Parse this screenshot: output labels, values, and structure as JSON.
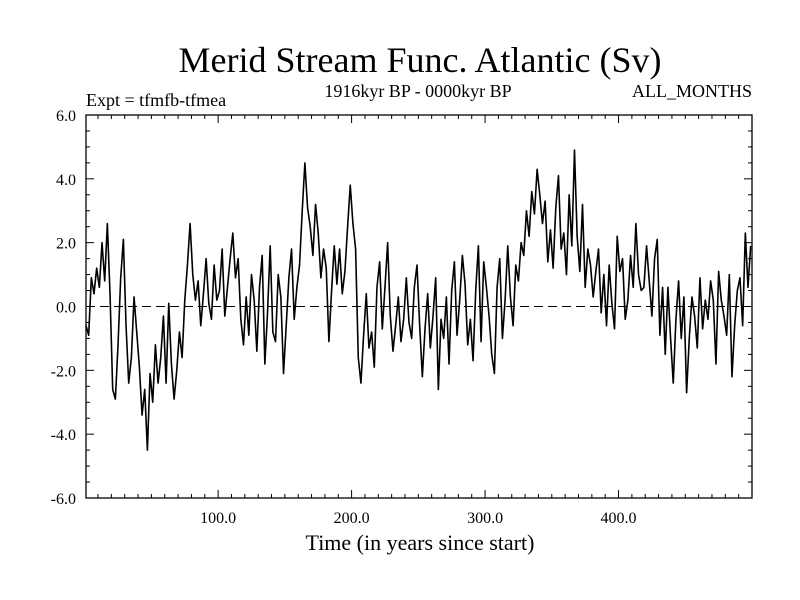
{
  "chart_data": {
    "type": "line",
    "title": "Merid Stream Func. Atlantic (Sv)",
    "subtitle": "1916kyr BP - 0000kyr BP",
    "experiment_label": "Expt = tfmfb-tfmea",
    "season_label": "ALL_MONTHS",
    "xlabel": "Time (in years since start)",
    "ylabel": "",
    "xlim": [
      1,
      500
    ],
    "ylim": [
      -6.0,
      6.0
    ],
    "x_ticks": [
      100,
      200,
      300,
      400
    ],
    "x_tick_labels": [
      "100.0",
      "200.0",
      "300.0",
      "400.0"
    ],
    "y_ticks": [
      -6,
      -4,
      -2,
      0,
      2,
      4,
      6
    ],
    "y_tick_labels": [
      "-6.0",
      "-4.0",
      "-2.0",
      "0.0",
      "2.0",
      "4.0",
      "6.0"
    ],
    "reference_line": 0.0,
    "series": [
      {
        "name": "Merid Stream Func. Atlantic",
        "x_start": 1,
        "x_step": 2,
        "values": [
          -0.6,
          -0.9,
          0.9,
          0.4,
          1.2,
          0.6,
          2.0,
          0.8,
          2.6,
          0.4,
          -2.6,
          -2.9,
          -1.2,
          0.9,
          2.1,
          -0.6,
          -2.4,
          -1.6,
          0.3,
          -0.8,
          -1.9,
          -3.4,
          -2.6,
          -4.5,
          -2.1,
          -3.0,
          -1.2,
          -2.4,
          -1.6,
          -0.3,
          -2.4,
          0.1,
          -1.8,
          -2.9,
          -2.0,
          -0.8,
          -1.6,
          0.2,
          1.3,
          2.6,
          1.0,
          0.2,
          0.8,
          -0.6,
          0.4,
          1.5,
          0.1,
          -0.4,
          1.3,
          0.2,
          0.5,
          1.8,
          -0.3,
          0.6,
          1.5,
          2.3,
          0.9,
          1.5,
          -0.4,
          -1.2,
          0.3,
          -0.9,
          1.0,
          0.2,
          -1.4,
          0.6,
          1.6,
          -1.8,
          -0.2,
          1.9,
          -0.8,
          -1.1,
          1.0,
          0.3,
          -2.1,
          -0.6,
          0.9,
          1.8,
          -0.4,
          0.6,
          1.3,
          3.0,
          4.5,
          3.1,
          2.5,
          1.6,
          3.2,
          2.3,
          0.9,
          1.8,
          1.2,
          -1.1,
          0.5,
          1.9,
          0.7,
          1.8,
          0.4,
          1.1,
          2.5,
          3.8,
          2.6,
          1.8,
          -1.6,
          -2.4,
          -0.9,
          0.4,
          -1.3,
          -0.8,
          -1.9,
          0.6,
          1.4,
          -0.7,
          0.6,
          2.0,
          -0.3,
          -1.4,
          -0.6,
          0.3,
          -1.1,
          -0.4,
          0.9,
          -0.5,
          -1.0,
          0.6,
          1.3,
          -0.6,
          -2.2,
          -0.7,
          0.4,
          -1.3,
          -0.3,
          0.9,
          -2.6,
          -0.4,
          -1.0,
          0.3,
          -1.8,
          0.5,
          1.4,
          -0.9,
          0.2,
          1.6,
          0.7,
          -1.2,
          -0.4,
          -1.7,
          0.5,
          1.9,
          -1.1,
          1.4,
          0.6,
          -0.3,
          -1.5,
          -2.1,
          0.6,
          1.5,
          -1.0,
          0.2,
          1.9,
          0.3,
          -0.6,
          1.3,
          0.8,
          2.0,
          1.6,
          3.0,
          2.2,
          3.6,
          2.9,
          4.3,
          3.5,
          2.6,
          3.3,
          1.4,
          2.4,
          1.2,
          3.1,
          4.1,
          1.8,
          2.3,
          1.0,
          3.5,
          1.9,
          4.9,
          2.2,
          1.1,
          3.2,
          0.6,
          1.8,
          1.3,
          0.3,
          1.1,
          1.8,
          -0.2,
          1.0,
          -0.6,
          1.3,
          0.1,
          -0.7,
          2.2,
          1.1,
          1.5,
          -0.4,
          0.2,
          1.6,
          0.6,
          2.6,
          1.0,
          0.5,
          0.6,
          1.9,
          0.8,
          -0.3,
          1.5,
          2.1,
          -0.9,
          0.6,
          -1.5,
          0.6,
          -1.0,
          -2.4,
          -0.4,
          0.8,
          -1.0,
          0.3,
          -2.7,
          -1.0,
          0.3,
          -0.3,
          -1.3,
          0.9,
          -0.7,
          0.2,
          -0.4,
          0.8,
          0.2,
          -1.8,
          1.1,
          0.2,
          -0.3,
          -0.9,
          1.0,
          -2.2,
          -0.6,
          0.5,
          0.9,
          -0.6,
          2.3,
          0.6,
          1.9
        ]
      }
    ]
  }
}
